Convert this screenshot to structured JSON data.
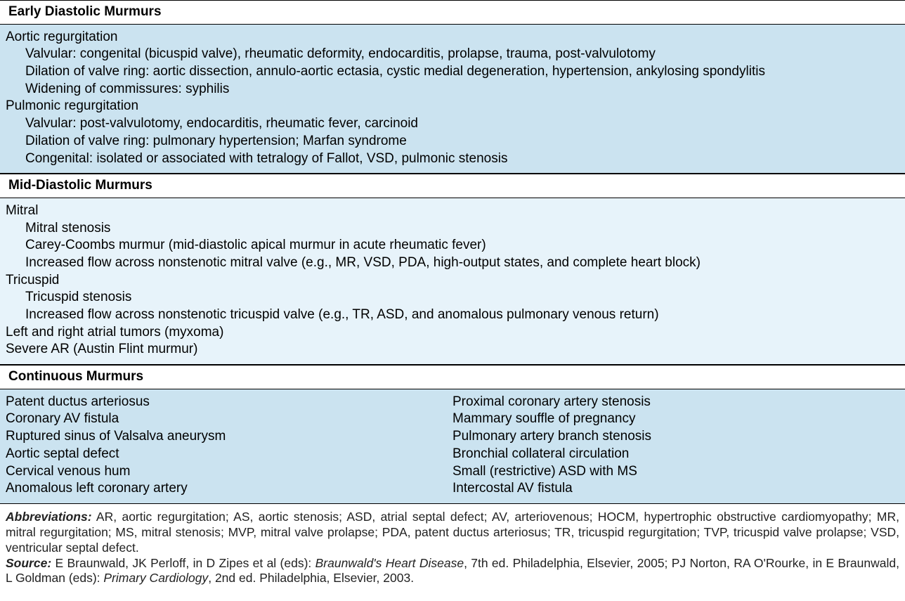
{
  "colors": {
    "bg_med": "#cbe3f0",
    "bg_light": "#e7f3fa",
    "border": "#000000",
    "text": "#000000"
  },
  "typography": {
    "body_fontsize_pt": 14,
    "footnote_fontsize_pt": 13,
    "font_family": "Helvetica"
  },
  "sections": [
    {
      "title": "Early Diastolic Murmurs",
      "bg": "bg-med",
      "items": [
        {
          "level": 0,
          "text": "Aortic regurgitation"
        },
        {
          "level": 1,
          "text": "Valvular: congenital (bicuspid valve), rheumatic deformity, endocarditis, prolapse, trauma, post-valvulotomy"
        },
        {
          "level": 1,
          "text": "Dilation of valve ring: aortic dissection, annulo-aortic ectasia, cystic medial degeneration, hypertension, ankylosing spondylitis"
        },
        {
          "level": 1,
          "text": "Widening of commissures: syphilis"
        },
        {
          "level": 0,
          "text": "Pulmonic regurgitation"
        },
        {
          "level": 1,
          "text": "Valvular: post-valvulotomy, endocarditis, rheumatic fever, carcinoid"
        },
        {
          "level": 1,
          "text": "Dilation of valve ring: pulmonary hypertension; Marfan syndrome"
        },
        {
          "level": 1,
          "text": "Congenital: isolated or associated with tetralogy of Fallot, VSD, pulmonic stenosis"
        }
      ]
    },
    {
      "title": "Mid-Diastolic Murmurs",
      "bg": "bg-light",
      "items": [
        {
          "level": 0,
          "text": "Mitral"
        },
        {
          "level": 1,
          "text": "Mitral stenosis"
        },
        {
          "level": 1,
          "text": "Carey-Coombs murmur (mid-diastolic apical murmur in acute rheumatic fever)"
        },
        {
          "level": 1,
          "text": "Increased flow across nonstenotic mitral valve (e.g., MR, VSD, PDA, high-output states, and complete heart block)"
        },
        {
          "level": 0,
          "text": "Tricuspid"
        },
        {
          "level": 1,
          "text": "Tricuspid stenosis"
        },
        {
          "level": 1,
          "text": "Increased flow across nonstenotic tricuspid valve (e.g., TR, ASD, and anomalous pulmonary venous return)"
        },
        {
          "level": 0,
          "text": "Left and right atrial tumors (myxoma)"
        },
        {
          "level": 0,
          "text": "Severe AR (Austin Flint murmur)"
        }
      ]
    },
    {
      "title": "Continuous Murmurs",
      "bg": "bg-med",
      "columns": [
        [
          "Patent ductus arteriosus",
          "Coronary AV fistula",
          "Ruptured sinus of Valsalva aneurysm",
          "Aortic septal defect",
          "Cervical venous hum",
          "Anomalous left coronary artery"
        ],
        [
          "Proximal coronary artery stenosis",
          "Mammary souffle of pregnancy",
          "Pulmonary artery branch stenosis",
          "Bronchial collateral circulation",
          "Small (restrictive) ASD with MS",
          "Intercostal AV fistula"
        ]
      ]
    }
  ],
  "abbrev_label": "Abbreviations:",
  "abbrev_text": " AR, aortic regurgitation; AS, aortic stenosis; ASD, atrial septal defect; AV, arteriovenous; HOCM, hypertrophic obstructive cardiomyopathy; MR, mitral regurgitation; MS, mitral stenosis; MVP, mitral valve prolapse; PDA, patent ductus arteriosus; TR, tricuspid regurgitation; TVP, tricuspid valve prolapse; VSD, ventricular septal defect.",
  "source_label": "Source:",
  "source_prefix": " E Braunwald, JK Perloff, in D Zipes et al (eds): ",
  "source_ital1": "Braunwald's Heart Disease",
  "source_mid": ", 7th ed. Philadelphia, Elsevier, 2005; PJ Norton, RA O'Rourke, in E Braunwald, L Goldman (eds): ",
  "source_ital2": "Primary Cardiology",
  "source_suffix": ", 2nd ed. Philadelphia, Elsevier, 2003."
}
